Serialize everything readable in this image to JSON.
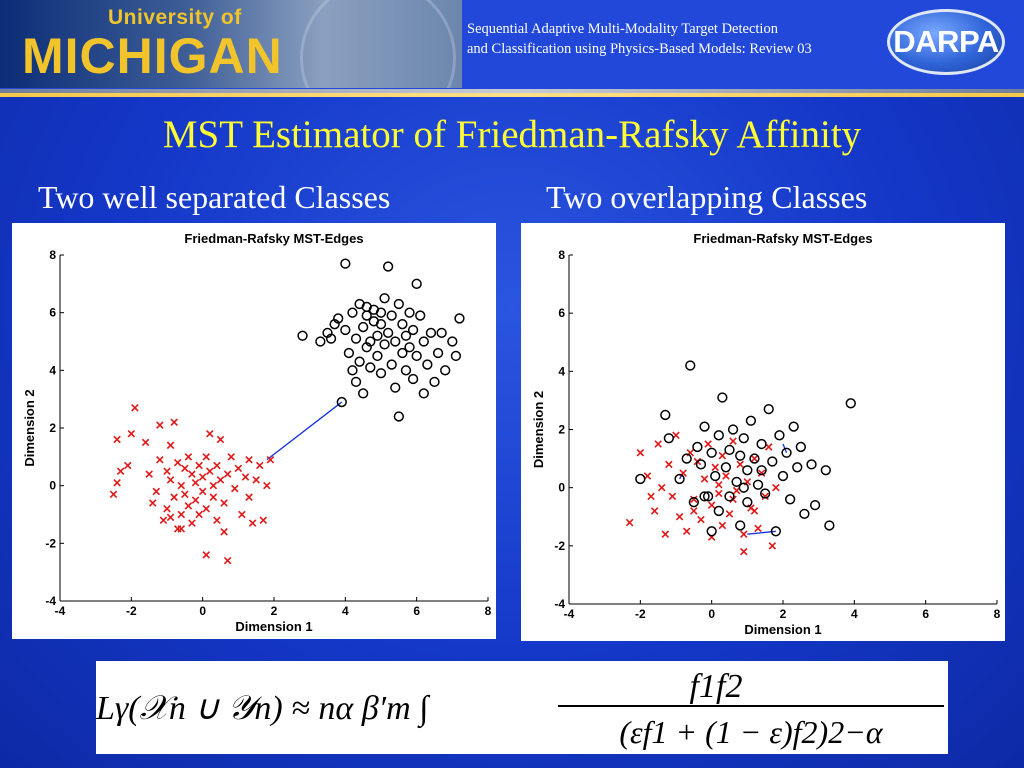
{
  "header": {
    "logo_text_top": "University of",
    "logo_text_main": "MICHIGAN",
    "title_line1": "Sequential Adaptive Multi-Modality Target Detection",
    "title_line2": "and Classification using Physics-Based Models: Review 03",
    "darpa_logo": "DARPA"
  },
  "slide": {
    "title": "MST Estimator of Friedman-Rafsky Affinity",
    "left_subtitle": "Two well separated Classes",
    "right_subtitle": "Two overlapping  Classes"
  },
  "formula": {
    "lhs": "Lγ(𝒳n ∪ 𝒴n) ≈ nα β′m ∫",
    "numerator": "f1f2",
    "denominator": "(εf1 + (1 − ε)f2)2−α"
  },
  "chart_data": [
    {
      "type": "scatter",
      "title": "Friedman-Rafsky MST-Edges",
      "xlabel": "Dimension 1",
      "ylabel": "Dimension 2",
      "xlim": [
        -4,
        8
      ],
      "ylim": [
        -4,
        8
      ],
      "xticks": [
        -4,
        -2,
        0,
        2,
        4,
        6,
        8
      ],
      "yticks": [
        -4,
        -2,
        0,
        2,
        4,
        6,
        8
      ],
      "series": [
        {
          "marker": "x",
          "color": "#e01818",
          "points": [
            [
              -2.5,
              -0.3
            ],
            [
              -2.4,
              0.1
            ],
            [
              -2.3,
              0.5
            ],
            [
              -2.1,
              0.7
            ],
            [
              -2.4,
              1.6
            ],
            [
              -2.0,
              1.8
            ],
            [
              -1.9,
              2.7
            ],
            [
              -1.6,
              1.5
            ],
            [
              -1.5,
              0.4
            ],
            [
              -1.4,
              -0.6
            ],
            [
              -1.3,
              -0.2
            ],
            [
              -1.2,
              0.9
            ],
            [
              -1.2,
              2.1
            ],
            [
              -1.1,
              -1.2
            ],
            [
              -1.0,
              0.5
            ],
            [
              -1.0,
              -0.8
            ],
            [
              -0.9,
              0.2
            ],
            [
              -0.9,
              1.4
            ],
            [
              -0.8,
              -0.4
            ],
            [
              -0.8,
              2.2
            ],
            [
              -0.7,
              0.8
            ],
            [
              -0.7,
              -1.5
            ],
            [
              -0.6,
              0.0
            ],
            [
              -0.6,
              -1.0
            ],
            [
              -0.5,
              0.6
            ],
            [
              -0.5,
              -0.3
            ],
            [
              -0.4,
              1.0
            ],
            [
              -0.4,
              -0.7
            ],
            [
              -0.3,
              0.4
            ],
            [
              -0.3,
              -1.3
            ],
            [
              -0.2,
              0.1
            ],
            [
              -0.2,
              -0.5
            ],
            [
              -0.1,
              0.7
            ],
            [
              -0.1,
              -1.0
            ],
            [
              0.0,
              0.3
            ],
            [
              0.0,
              -0.2
            ],
            [
              0.1,
              1.0
            ],
            [
              0.1,
              -0.8
            ],
            [
              0.2,
              0.5
            ],
            [
              0.2,
              1.8
            ],
            [
              0.3,
              -0.4
            ],
            [
              0.3,
              0.0
            ],
            [
              0.4,
              0.7
            ],
            [
              0.4,
              -1.2
            ],
            [
              0.5,
              0.2
            ],
            [
              0.5,
              1.6
            ],
            [
              0.6,
              -0.6
            ],
            [
              0.6,
              -1.6
            ],
            [
              0.7,
              0.4
            ],
            [
              0.7,
              -2.6
            ],
            [
              0.8,
              1.0
            ],
            [
              0.9,
              -0.1
            ],
            [
              1.0,
              0.6
            ],
            [
              1.1,
              -1.0
            ],
            [
              1.2,
              0.3
            ],
            [
              1.3,
              -0.4
            ],
            [
              1.3,
              0.9
            ],
            [
              1.4,
              -1.3
            ],
            [
              1.5,
              0.2
            ],
            [
              1.6,
              0.7
            ],
            [
              1.7,
              -1.2
            ],
            [
              1.8,
              0.0
            ],
            [
              1.9,
              0.9
            ],
            [
              0.1,
              -2.4
            ],
            [
              -0.6,
              -1.5
            ],
            [
              -0.9,
              -1.1
            ]
          ]
        },
        {
          "marker": "o",
          "color": "#000000",
          "points": [
            [
              2.8,
              5.2
            ],
            [
              3.3,
              5.0
            ],
            [
              3.5,
              5.3
            ],
            [
              3.7,
              5.6
            ],
            [
              3.8,
              5.8
            ],
            [
              3.9,
              2.9
            ],
            [
              4.0,
              7.7
            ],
            [
              4.0,
              5.4
            ],
            [
              4.1,
              4.6
            ],
            [
              4.2,
              4.0
            ],
            [
              4.2,
              6.0
            ],
            [
              4.3,
              5.1
            ],
            [
              4.3,
              3.6
            ],
            [
              4.4,
              6.3
            ],
            [
              4.4,
              4.3
            ],
            [
              4.5,
              5.5
            ],
            [
              4.5,
              3.2
            ],
            [
              4.6,
              4.8
            ],
            [
              4.6,
              5.9
            ],
            [
              4.7,
              5.0
            ],
            [
              4.7,
              4.1
            ],
            [
              4.8,
              5.7
            ],
            [
              4.8,
              6.1
            ],
            [
              4.9,
              4.5
            ],
            [
              4.9,
              5.2
            ],
            [
              5.0,
              3.9
            ],
            [
              5.0,
              5.6
            ],
            [
              5.1,
              4.9
            ],
            [
              5.1,
              6.5
            ],
            [
              5.2,
              7.6
            ],
            [
              5.2,
              5.3
            ],
            [
              5.3,
              4.2
            ],
            [
              5.3,
              5.9
            ],
            [
              5.4,
              3.4
            ],
            [
              5.4,
              5.0
            ],
            [
              5.5,
              6.3
            ],
            [
              5.5,
              2.4
            ],
            [
              5.6,
              4.6
            ],
            [
              5.6,
              5.6
            ],
            [
              5.7,
              4.0
            ],
            [
              5.7,
              5.2
            ],
            [
              5.8,
              6.0
            ],
            [
              5.8,
              4.8
            ],
            [
              5.9,
              3.7
            ],
            [
              5.9,
              5.4
            ],
            [
              6.0,
              7.0
            ],
            [
              6.0,
              4.5
            ],
            [
              6.1,
              5.9
            ],
            [
              6.2,
              3.2
            ],
            [
              6.2,
              5.0
            ],
            [
              6.3,
              4.2
            ],
            [
              6.4,
              5.3
            ],
            [
              6.5,
              3.6
            ],
            [
              6.6,
              4.6
            ],
            [
              6.7,
              5.3
            ],
            [
              6.8,
              4.0
            ],
            [
              7.0,
              5.0
            ],
            [
              7.1,
              4.5
            ],
            [
              7.2,
              5.8
            ],
            [
              3.6,
              5.1
            ],
            [
              4.6,
              6.2
            ],
            [
              5.0,
              6.0
            ]
          ]
        }
      ],
      "edges": [
        [
          [
            1.8,
            0.9
          ],
          [
            3.9,
            2.9
          ]
        ]
      ]
    },
    {
      "type": "scatter",
      "title": "Friedman-Rafsky MST-Edges",
      "xlabel": "Dimension 1",
      "ylabel": "Dimension 2",
      "xlim": [
        -4,
        8
      ],
      "ylim": [
        -4,
        8
      ],
      "xticks": [
        -4,
        -2,
        0,
        2,
        4,
        6,
        8
      ],
      "yticks": [
        -4,
        -2,
        0,
        2,
        4,
        6,
        8
      ],
      "series": [
        {
          "marker": "x",
          "color": "#e01818",
          "points": [
            [
              -2.3,
              -1.2
            ],
            [
              -2.0,
              1.2
            ],
            [
              -1.8,
              0.4
            ],
            [
              -1.6,
              -0.8
            ],
            [
              -1.5,
              1.5
            ],
            [
              -1.4,
              0.0
            ],
            [
              -1.3,
              -1.6
            ],
            [
              -1.2,
              0.8
            ],
            [
              -1.1,
              -0.3
            ],
            [
              -1.0,
              1.8
            ],
            [
              -0.9,
              -1.0
            ],
            [
              -0.8,
              0.5
            ],
            [
              -0.7,
              -1.5
            ],
            [
              -0.6,
              1.2
            ],
            [
              -0.5,
              -0.4
            ],
            [
              -0.4,
              0.9
            ],
            [
              -0.3,
              -1.1
            ],
            [
              -0.2,
              0.3
            ],
            [
              -0.1,
              1.5
            ],
            [
              0.0,
              -0.6
            ],
            [
              0.0,
              -1.7
            ],
            [
              0.1,
              0.7
            ],
            [
              0.2,
              -0.2
            ],
            [
              0.3,
              1.1
            ],
            [
              0.3,
              -1.3
            ],
            [
              0.4,
              0.4
            ],
            [
              0.5,
              -0.9
            ],
            [
              0.6,
              1.6
            ],
            [
              0.7,
              -0.1
            ],
            [
              0.8,
              0.8
            ],
            [
              0.9,
              -1.6
            ],
            [
              1.0,
              0.2
            ],
            [
              1.1,
              -0.7
            ],
            [
              1.2,
              1.0
            ],
            [
              1.3,
              -1.4
            ],
            [
              1.4,
              0.5
            ],
            [
              1.5,
              -0.3
            ],
            [
              1.6,
              1.4
            ],
            [
              1.7,
              -2.0
            ],
            [
              1.8,
              0.0
            ],
            [
              0.9,
              -2.2
            ],
            [
              -0.5,
              -0.8
            ],
            [
              0.2,
              0.1
            ],
            [
              -1.7,
              -0.3
            ],
            [
              0.6,
              -0.4
            ],
            [
              1.2,
              -0.8
            ]
          ]
        },
        {
          "marker": "o",
          "color": "#000000",
          "points": [
            [
              -2.0,
              0.3
            ],
            [
              -1.3,
              2.5
            ],
            [
              -1.2,
              1.7
            ],
            [
              -0.9,
              0.3
            ],
            [
              -0.7,
              1.0
            ],
            [
              -0.6,
              4.2
            ],
            [
              -0.5,
              -0.5
            ],
            [
              -0.4,
              1.4
            ],
            [
              -0.3,
              0.8
            ],
            [
              -0.2,
              2.1
            ],
            [
              -0.1,
              -0.3
            ],
            [
              0.0,
              1.2
            ],
            [
              0.0,
              -1.5
            ],
            [
              0.1,
              0.4
            ],
            [
              0.2,
              1.8
            ],
            [
              0.2,
              -0.8
            ],
            [
              0.3,
              3.1
            ],
            [
              0.4,
              0.7
            ],
            [
              0.5,
              1.3
            ],
            [
              0.5,
              -0.3
            ],
            [
              0.6,
              2.0
            ],
            [
              0.7,
              0.2
            ],
            [
              0.8,
              1.1
            ],
            [
              0.8,
              -1.3
            ],
            [
              0.9,
              1.7
            ],
            [
              1.0,
              0.6
            ],
            [
              1.0,
              -0.5
            ],
            [
              1.1,
              2.3
            ],
            [
              1.2,
              1.0
            ],
            [
              1.3,
              0.1
            ],
            [
              1.4,
              1.5
            ],
            [
              1.5,
              -0.2
            ],
            [
              1.6,
              2.7
            ],
            [
              1.7,
              0.9
            ],
            [
              1.8,
              -1.5
            ],
            [
              1.9,
              1.8
            ],
            [
              2.0,
              0.4
            ],
            [
              2.1,
              1.2
            ],
            [
              2.2,
              -0.4
            ],
            [
              2.3,
              2.1
            ],
            [
              2.4,
              0.7
            ],
            [
              2.5,
              1.4
            ],
            [
              2.6,
              -0.9
            ],
            [
              2.8,
              0.8
            ],
            [
              2.9,
              -0.6
            ],
            [
              3.2,
              0.6
            ],
            [
              3.3,
              -1.3
            ],
            [
              3.9,
              2.9
            ],
            [
              -0.2,
              -0.3
            ],
            [
              0.9,
              0.0
            ],
            [
              1.4,
              0.6
            ]
          ]
        }
      ],
      "edges": [
        [
          [
            1.0,
            -1.6
          ],
          [
            1.8,
            -1.5
          ]
        ],
        [
          [
            -0.9,
            0.3
          ],
          [
            -0.8,
            0.5
          ]
        ],
        [
          [
            2.0,
            1.5
          ],
          [
            2.1,
            1.2
          ]
        ]
      ]
    }
  ]
}
